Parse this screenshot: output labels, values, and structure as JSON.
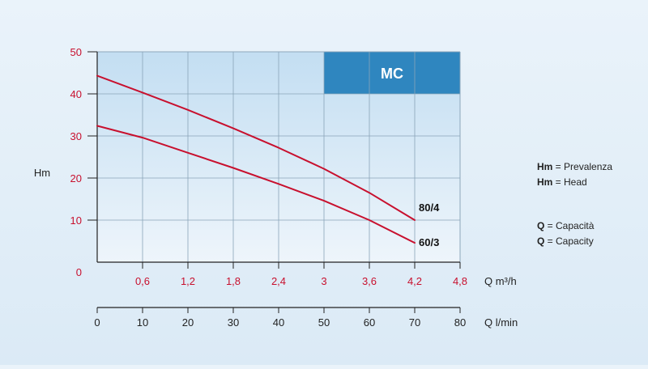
{
  "chart_data": {
    "type": "line",
    "title": "MC",
    "ylabel": "Hm",
    "ylim": [
      0,
      50
    ],
    "y_ticks": [
      "0",
      "10",
      "20",
      "30",
      "40",
      "50"
    ],
    "axis_flow_m3h": {
      "label": "Q m³/h",
      "range": [
        0,
        4.8
      ],
      "ticks": [
        "0,6",
        "1,2",
        "1,8",
        "2,4",
        "3",
        "3,6",
        "4,2",
        "4,8"
      ]
    },
    "axis_flow_lmin": {
      "label": "Q l/min",
      "range": [
        0,
        80
      ],
      "ticks": [
        "0",
        "10",
        "20",
        "30",
        "40",
        "50",
        "60",
        "70",
        "80"
      ]
    },
    "series": [
      {
        "name": "80/4",
        "x": [
          0,
          0.6,
          1.2,
          1.8,
          2.4,
          3.0,
          3.6,
          4.2
        ],
        "y": [
          44.3,
          40.3,
          36.2,
          31.8,
          27.2,
          22.2,
          16.5,
          10.0
        ]
      },
      {
        "name": "60/3",
        "x": [
          0,
          0.6,
          1.2,
          1.8,
          2.4,
          3.0,
          3.6,
          4.2
        ],
        "y": [
          32.4,
          29.6,
          26.0,
          22.4,
          18.6,
          14.6,
          10.0,
          4.6
        ]
      }
    ],
    "grid": true,
    "legend_position": "right",
    "colors": {
      "line": "#c8102e",
      "axis_red": "#c8102e",
      "badge": "#2f86bf",
      "grid": "#8aa4b8"
    }
  },
  "legend": [
    {
      "key": "Hm",
      "text": " = Prevalenza"
    },
    {
      "key": "Hm",
      "text": " = Head"
    },
    {
      "key": "Q",
      "text": " = Capacità"
    },
    {
      "key": "Q",
      "text": " = Capacity"
    }
  ]
}
